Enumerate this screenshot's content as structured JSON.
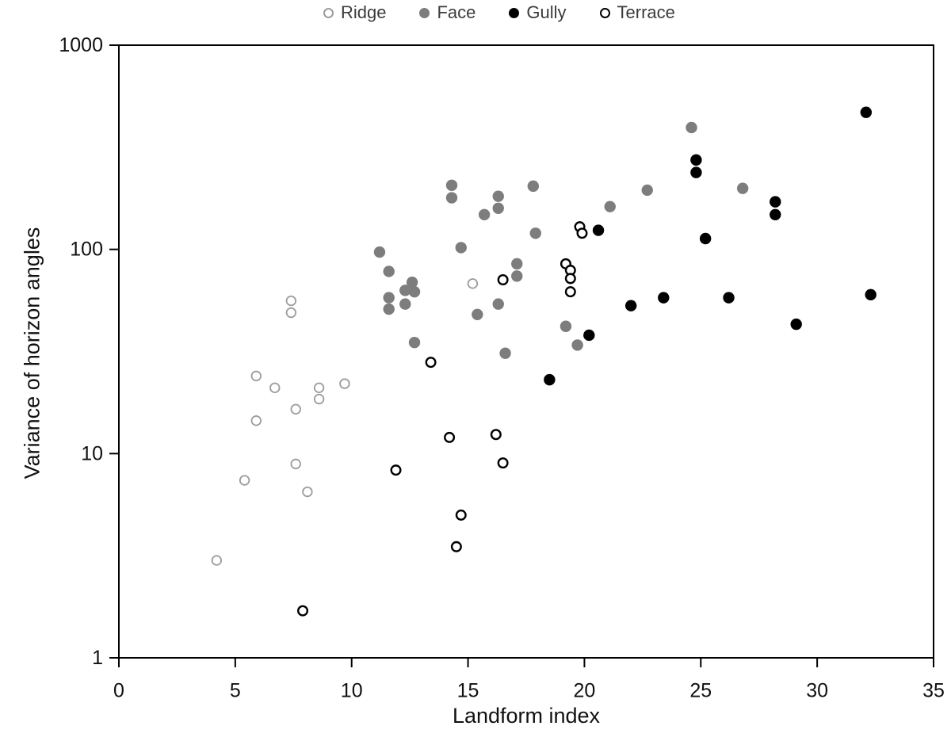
{
  "chart_data": {
    "type": "scatter",
    "title": "",
    "xlabel": "Landform index",
    "ylabel": "Variance of horizon angles",
    "xlim": [
      0,
      35
    ],
    "xticks": [
      0,
      5,
      10,
      15,
      20,
      25,
      30,
      35
    ],
    "yscale": "log",
    "ylim": [
      1,
      1000
    ],
    "yticks": [
      1,
      10,
      100,
      1000
    ],
    "grid": false,
    "legend_position": "top-center",
    "plot_border_color": "#000000",
    "series": [
      {
        "name": "Ridge",
        "marker": "open-circle",
        "color": "#9c9c9c",
        "points": [
          [
            5.9,
            24
          ],
          [
            6.7,
            21
          ],
          [
            8.6,
            21
          ],
          [
            8.6,
            18.5
          ],
          [
            9.7,
            22
          ],
          [
            7.6,
            16.5
          ],
          [
            5.9,
            14.5
          ],
          [
            7.4,
            56
          ],
          [
            7.4,
            49
          ],
          [
            7.6,
            8.9
          ],
          [
            5.4,
            7.4
          ],
          [
            8.1,
            6.5
          ],
          [
            4.2,
            3.0
          ],
          [
            15.2,
            68
          ]
        ]
      },
      {
        "name": "Face",
        "marker": "filled-circle",
        "color": "#7d7d7d",
        "points": [
          [
            14.3,
            206
          ],
          [
            14.3,
            179
          ],
          [
            16.3,
            182
          ],
          [
            16.3,
            159
          ],
          [
            15.7,
            148
          ],
          [
            17.8,
            204
          ],
          [
            17.9,
            120
          ],
          [
            14.7,
            102
          ],
          [
            11.2,
            97
          ],
          [
            11.6,
            78
          ],
          [
            12.6,
            69
          ],
          [
            12.3,
            63
          ],
          [
            12.7,
            62
          ],
          [
            11.6,
            58
          ],
          [
            12.3,
            54
          ],
          [
            11.6,
            51
          ],
          [
            16.3,
            54
          ],
          [
            15.4,
            48
          ],
          [
            12.7,
            35
          ],
          [
            16.6,
            31
          ],
          [
            17.1,
            85
          ],
          [
            17.1,
            74
          ],
          [
            21.1,
            162
          ],
          [
            22.7,
            195
          ],
          [
            24.6,
            395
          ],
          [
            26.8,
            199
          ],
          [
            19.2,
            42
          ],
          [
            19.7,
            34
          ]
        ]
      },
      {
        "name": "Gully",
        "marker": "filled-circle",
        "color": "#000000",
        "points": [
          [
            24.8,
            274
          ],
          [
            24.8,
            238
          ],
          [
            32.1,
            469
          ],
          [
            28.2,
            171
          ],
          [
            28.2,
            148
          ],
          [
            20.6,
            124
          ],
          [
            25.2,
            113
          ],
          [
            22.0,
            53
          ],
          [
            23.4,
            58
          ],
          [
            26.2,
            58
          ],
          [
            32.3,
            60
          ],
          [
            29.1,
            43
          ],
          [
            20.2,
            38
          ],
          [
            18.5,
            23
          ]
        ]
      },
      {
        "name": "Terrace",
        "marker": "open-circle",
        "color": "#000000",
        "points": [
          [
            19.8,
            129
          ],
          [
            19.9,
            120
          ],
          [
            19.2,
            85
          ],
          [
            19.4,
            79
          ],
          [
            19.4,
            72
          ],
          [
            19.4,
            62
          ],
          [
            16.5,
            71
          ],
          [
            13.4,
            28
          ],
          [
            14.2,
            12
          ],
          [
            16.2,
            12.4
          ],
          [
            16.5,
            9.0
          ],
          [
            11.9,
            8.3
          ],
          [
            14.7,
            5.0
          ],
          [
            14.5,
            3.5
          ],
          [
            7.9,
            1.7
          ]
        ]
      }
    ]
  }
}
